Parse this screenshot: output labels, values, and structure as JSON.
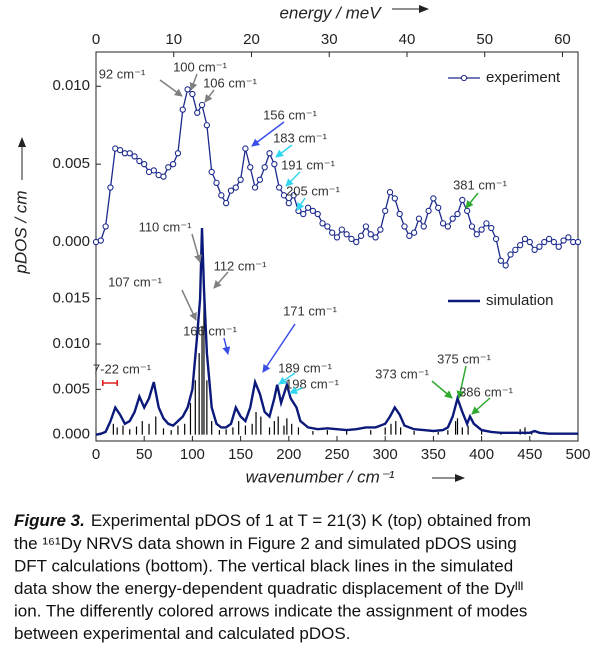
{
  "chart_data": [
    {
      "type": "line",
      "x2label": "energy / meV",
      "ylabel": "pDOS / cm",
      "x": [
        0,
        5,
        10,
        15,
        20,
        25,
        30,
        35,
        40,
        45,
        50,
        55,
        60,
        65,
        70,
        75,
        80,
        85,
        90,
        95,
        100,
        105,
        110,
        115,
        120,
        125,
        130,
        135,
        140,
        145,
        150,
        155,
        160,
        165,
        170,
        175,
        180,
        185,
        190,
        195,
        200,
        205,
        210,
        215,
        220,
        225,
        230,
        235,
        240,
        245,
        250,
        255,
        260,
        265,
        270,
        275,
        280,
        285,
        290,
        295,
        300,
        305,
        310,
        315,
        320,
        325,
        330,
        335,
        340,
        345,
        350,
        355,
        360,
        365,
        370,
        375,
        380,
        385,
        390,
        395,
        400,
        405,
        410,
        415,
        420,
        425,
        430,
        435,
        440,
        445,
        450,
        455,
        460,
        465,
        470,
        475,
        480,
        485,
        490,
        495,
        500
      ],
      "series": [
        {
          "name": "experiment",
          "color": "#1c2a8c",
          "values": [
            0.0,
            0.0001,
            0.001,
            0.0035,
            0.006,
            0.0059,
            0.0057,
            0.0057,
            0.0055,
            0.0052,
            0.005,
            0.0045,
            0.0046,
            0.0043,
            0.0042,
            0.0048,
            0.005,
            0.0057,
            0.0085,
            0.0098,
            0.0095,
            0.0083,
            0.0088,
            0.0075,
            0.0045,
            0.0038,
            0.003,
            0.0025,
            0.0033,
            0.0035,
            0.004,
            0.006,
            0.0048,
            0.0035,
            0.004,
            0.0048,
            0.0057,
            0.005,
            0.0035,
            0.003,
            0.0025,
            0.003,
            0.002,
            0.0018,
            0.0022,
            0.002,
            0.0018,
            0.0012,
            0.001,
            0.0006,
            0.0003,
            0.0008,
            0.0005,
            0.0002,
            0.0,
            0.0004,
            0.001,
            0.0005,
            0.0003,
            0.0008,
            0.002,
            0.0032,
            0.0028,
            0.0018,
            0.001,
            0.0004,
            0.0006,
            0.0015,
            0.001,
            0.002,
            0.0028,
            0.0022,
            0.0012,
            0.001,
            0.0015,
            0.0018,
            0.0027,
            0.002,
            0.001,
            0.0005,
            0.0008,
            0.0012,
            0.0009,
            0.0002,
            -0.0012,
            -0.0015,
            -0.0008,
            -0.0005,
            -0.0002,
            0.0002,
            0.0,
            -0.0005,
            -0.0003,
            0.0,
            0.0002,
            0.0,
            -0.0003,
            0.0001,
            0.0003,
            0.0,
            0.0
          ]
        }
      ],
      "xlim": [
        0,
        500
      ],
      "x2lim": [
        0,
        62
      ],
      "x2ticks": [
        0,
        10,
        20,
        30,
        40,
        50,
        60
      ],
      "ylim": [
        -0.0025,
        0.0122
      ],
      "yticks": [
        {
          "value": 0,
          "label": "0.000"
        },
        {
          "value": 0.005,
          "label": "0.005"
        },
        {
          "value": 0.01,
          "label": "0.010"
        }
      ],
      "legend": "upper right",
      "annotations": [
        {
          "text": "92 cm⁻¹",
          "color": "#808080"
        },
        {
          "text": "100 cm⁻¹",
          "color": "#808080"
        },
        {
          "text": "106 cm⁻¹",
          "color": "#808080"
        },
        {
          "text": "156 cm⁻¹",
          "color": "#3a4ee8"
        },
        {
          "text": "183 cm⁻¹",
          "color": "#33d6f0"
        },
        {
          "text": "191 cm⁻¹",
          "color": "#33d6f0"
        },
        {
          "text": "205 cm⁻¹",
          "color": "#33d6f0"
        },
        {
          "text": "381 cm⁻¹",
          "color": "#2eaa2e"
        }
      ]
    },
    {
      "type": "line",
      "xlabel": "wavenumber / cm⁻¹",
      "x": [
        0,
        5,
        10,
        15,
        20,
        25,
        30,
        35,
        40,
        45,
        50,
        55,
        60,
        65,
        70,
        75,
        80,
        85,
        90,
        95,
        100,
        105,
        108,
        110,
        112,
        115,
        120,
        125,
        130,
        135,
        140,
        145,
        150,
        155,
        160,
        165,
        170,
        175,
        180,
        185,
        188,
        192,
        198,
        202,
        208,
        212,
        220,
        230,
        240,
        250,
        260,
        270,
        280,
        290,
        300,
        305,
        310,
        315,
        320,
        330,
        340,
        350,
        360,
        365,
        370,
        375,
        380,
        385,
        388,
        392,
        400,
        410,
        420,
        430,
        440,
        450,
        455,
        460,
        470,
        480,
        490,
        500
      ],
      "series": [
        {
          "name": "simulation",
          "color": "#0b1a7a",
          "values": [
            0,
            0.0001,
            0.0003,
            0.0015,
            0.003,
            0.0022,
            0.0012,
            0.0015,
            0.0025,
            0.0042,
            0.003,
            0.004,
            0.0058,
            0.003,
            0.0018,
            0.0012,
            0.001,
            0.0015,
            0.002,
            0.003,
            0.005,
            0.011,
            0.015,
            0.0228,
            0.016,
            0.009,
            0.003,
            0.0012,
            0.0008,
            0.0008,
            0.0012,
            0.003,
            0.002,
            0.0015,
            0.003,
            0.0058,
            0.0045,
            0.0025,
            0.002,
            0.004,
            0.0055,
            0.0035,
            0.0055,
            0.004,
            0.003,
            0.0015,
            0.0008,
            0.0006,
            0.0007,
            0.0006,
            0.0005,
            0.0006,
            0.0008,
            0.0008,
            0.0012,
            0.002,
            0.003,
            0.0022,
            0.001,
            0.0006,
            0.0005,
            0.0004,
            0.0005,
            0.0008,
            0.002,
            0.004,
            0.0025,
            0.0012,
            0.002,
            0.0012,
            0.0005,
            0.0003,
            0.0002,
            0.0002,
            0.0002,
            0.0002,
            0.0004,
            0.0002,
            0.0001,
            0.0001,
            0.0001,
            0.0001
          ]
        }
      ],
      "sticks": {
        "color": "#000000",
        "x": [
          18,
          22,
          28,
          35,
          42,
          48,
          55,
          62,
          70,
          78,
          85,
          92,
          98,
          103,
          107,
          110,
          112,
          115,
          120,
          128,
          135,
          142,
          148,
          155,
          162,
          166,
          171,
          180,
          185,
          189,
          195,
          198,
          203,
          210,
          225,
          240,
          260,
          285,
          300,
          306,
          311,
          316,
          330,
          355,
          365,
          373,
          375,
          380,
          386,
          400,
          420,
          440,
          445,
          452
        ],
        "values": [
          0.0012,
          0.0008,
          0.001,
          0.0006,
          0.0009,
          0.0015,
          0.0012,
          0.002,
          0.0007,
          0.0005,
          0.001,
          0.0012,
          0.0035,
          0.006,
          0.009,
          0.012,
          0.015,
          0.006,
          0.0015,
          0.0005,
          0.0006,
          0.0008,
          0.0015,
          0.001,
          0.0012,
          0.0025,
          0.002,
          0.0008,
          0.0015,
          0.002,
          0.001,
          0.0018,
          0.0012,
          0.0008,
          0.0004,
          0.0005,
          0.0004,
          0.0005,
          0.0008,
          0.0012,
          0.0015,
          0.0008,
          0.0004,
          0.0003,
          0.0005,
          0.0015,
          0.0018,
          0.0008,
          0.001,
          0.0004,
          0.0003,
          0.0006,
          0.0008,
          0.0004
        ]
      },
      "xlim": [
        0,
        500
      ],
      "xticks": [
        0,
        50,
        100,
        150,
        200,
        250,
        300,
        350,
        400,
        450,
        500
      ],
      "ylim": [
        -0.0007,
        0.0228
      ],
      "yticks": [
        {
          "value": 0,
          "label": "0.000"
        },
        {
          "value": 0.005,
          "label": "0.005"
        },
        {
          "value": 0.01,
          "label": "0.010"
        },
        {
          "value": 0.015,
          "label": "0.015"
        }
      ],
      "legend": "upper right",
      "annotations": [
        {
          "text": "110 cm⁻¹",
          "color": "#808080"
        },
        {
          "text": "112 cm⁻¹",
          "color": "#808080"
        },
        {
          "text": "107 cm⁻¹",
          "color": "#808080"
        },
        {
          "text": "166 cm⁻¹",
          "color": "#3a4ee8"
        },
        {
          "text": "171 cm⁻¹",
          "color": "#3a4ee8"
        },
        {
          "text": "189 cm⁻¹",
          "color": "#33d6f0"
        },
        {
          "text": "198 cm⁻¹",
          "color": "#33d6f0"
        },
        {
          "text": "373 cm⁻¹",
          "color": "#2eaa2e"
        },
        {
          "text": "375 cm⁻¹",
          "color": "#2eaa2e"
        },
        {
          "text": "386 cm⁻¹",
          "color": "#2eaa2e"
        },
        {
          "text": "7-22 cm⁻¹",
          "color": "#e02020"
        }
      ]
    }
  ],
  "caption": {
    "label": "Figure 3.",
    "lines": [
      "Experimental pDOS of 1 at T = 21(3) K (top) obtained from",
      "the ¹⁶¹Dy NRVS data shown in Figure 2 and simulated pDOS using",
      "DFT calculations (bottom). The vertical black lines in the simulated",
      "data show the energy-dependent quadratic displacement of the Dyᴵᴵᴵ",
      "ion. The differently colored arrows indicate the assignment of modes",
      "between experimental and calculated pDOS."
    ]
  }
}
